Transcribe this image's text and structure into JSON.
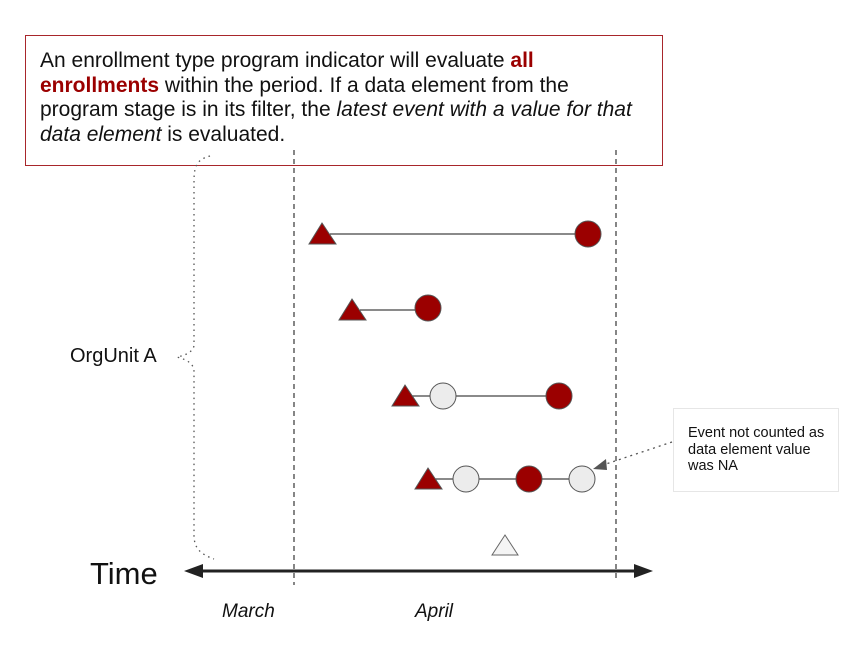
{
  "note": {
    "text_before": "An enrollment type program indicator will evaluate ",
    "highlight": "all enrollments",
    "text_middle": " within the period. If a data element from the program stage is in its filter, the ",
    "italic": "latest event with a value for that data element",
    "text_after": " is evaluated."
  },
  "callout": {
    "text": "Event not counted as data element value was NA"
  },
  "labels": {
    "orgunit": "OrgUnit A",
    "time": "Time",
    "month_1": "March",
    "month_2": "April"
  },
  "colors": {
    "event_filled": "#9b0000",
    "event_empty": "#ececec",
    "frame": "#a8262b",
    "axis": "#222222"
  },
  "legend_shapes": {
    "enrollment": "triangle",
    "event": "circle"
  }
}
